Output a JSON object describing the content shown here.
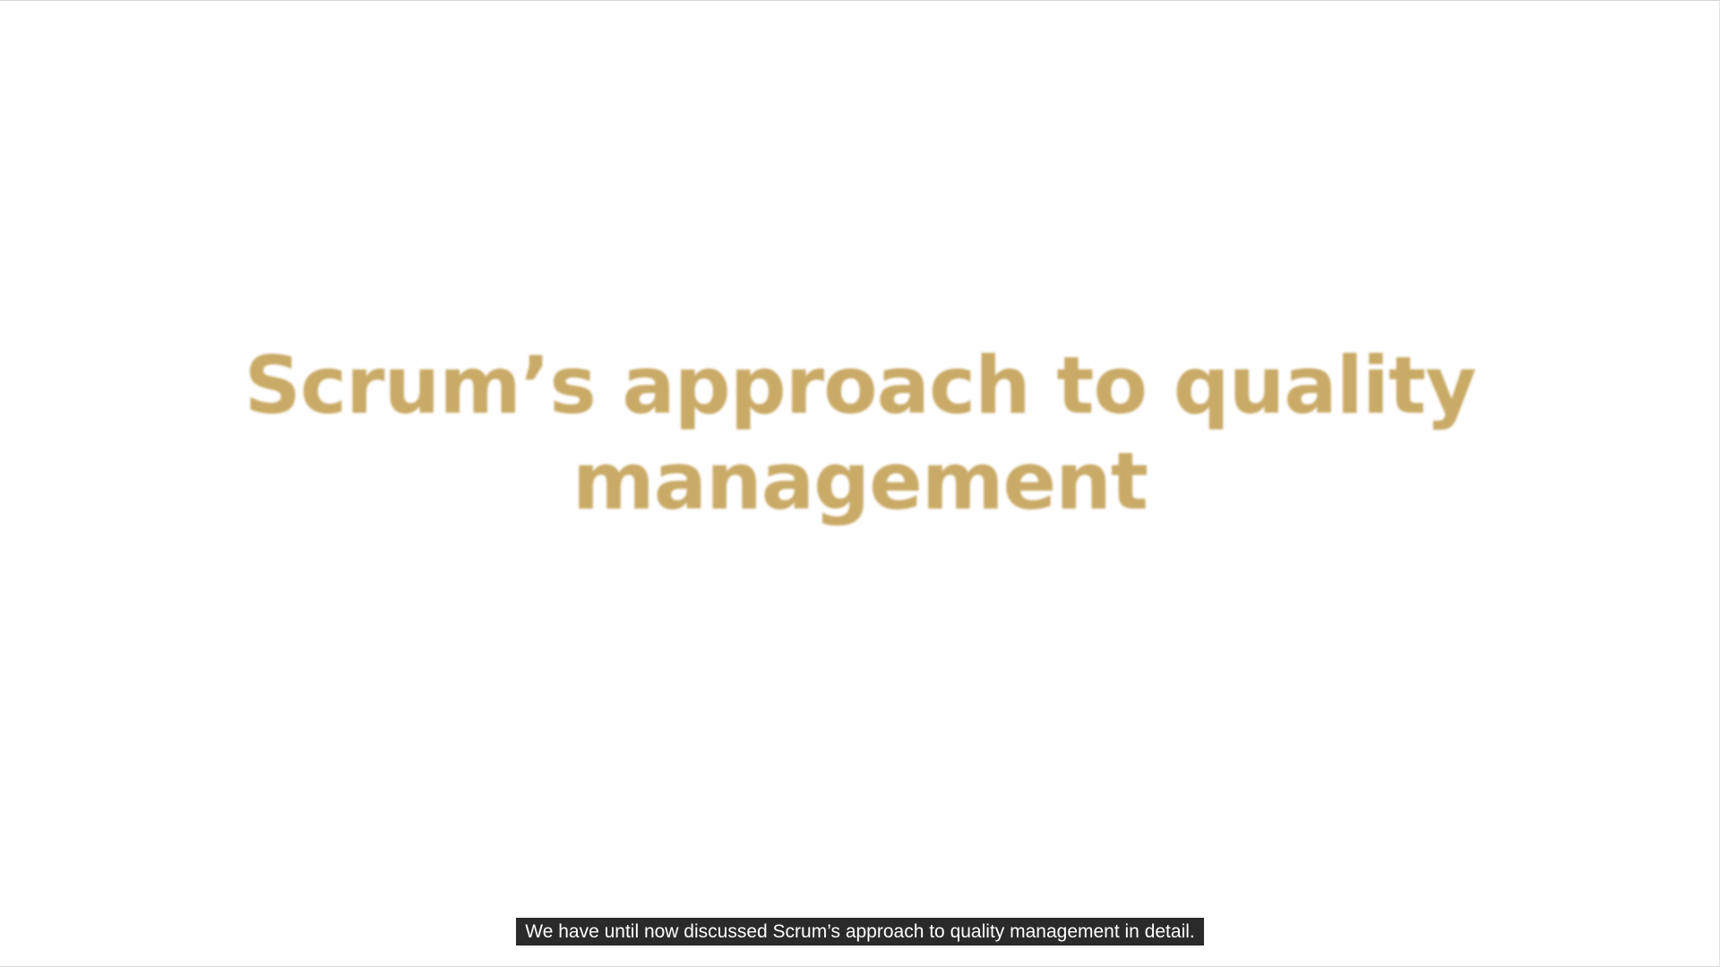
{
  "slide": {
    "title": "Scrum’s approach to quality management",
    "title_color": "#c9aa66",
    "background_color": "#ffffff"
  },
  "caption": {
    "text": "We have until now discussed Scrum’s approach to quality management in detail.",
    "background_color": "#2a2a2a",
    "text_color": "#ffffff"
  }
}
